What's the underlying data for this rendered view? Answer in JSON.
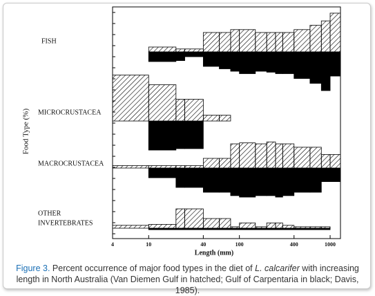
{
  "chart_data": {
    "type": "kite",
    "xlabel": "Length (mm)",
    "ylabel": "Food Type (%)",
    "log_x": true,
    "xlim": [
      4,
      1300
    ],
    "xticks": [
      4,
      10,
      40,
      100,
      400,
      1000
    ],
    "bins": [
      4,
      10,
      20,
      25,
      40,
      60,
      80,
      100,
      150,
      200,
      250,
      300,
      400,
      600,
      800,
      1000,
      1300
    ],
    "rows": [
      {
        "label": [
          "FISH"
        ],
        "series": [
          {
            "pattern": "hatched",
            "color": "#000000",
            "values": [
              0,
              10,
              6,
              6,
              40,
              40,
              46,
              46,
              40,
              40,
              40,
              40,
              46,
              55,
              64,
              80
            ]
          },
          {
            "pattern": "solid",
            "color": "#000000",
            "values": [
              0,
              20,
              18,
              10,
              30,
              35,
              40,
              45,
              40,
              42,
              45,
              45,
              55,
              65,
              80,
              50
            ]
          }
        ]
      },
      {
        "label": [
          "MICROCRUSTACEA"
        ],
        "series": [
          {
            "pattern": "hatched",
            "color": "#000000",
            "values": [
              95,
              75,
              45,
              45,
              12,
              12,
              0,
              0,
              0,
              0,
              0,
              0,
              0,
              0,
              0,
              0
            ]
          },
          {
            "pattern": "solid",
            "color": "#000000",
            "values": [
              0,
              60,
              57,
              57,
              0,
              0,
              0,
              0,
              0,
              0,
              0,
              0,
              0,
              0,
              0,
              0
            ]
          }
        ]
      },
      {
        "label": [
          "MACROCRUSTACEA"
        ],
        "series": [
          {
            "pattern": "hatched",
            "color": "#000000",
            "values": [
              5,
              5,
              5,
              5,
              20,
              20,
              50,
              52,
              50,
              54,
              50,
              50,
              43,
              43,
              28,
              28
            ]
          },
          {
            "pattern": "solid",
            "color": "#000000",
            "values": [
              0,
              20,
              40,
              40,
              50,
              50,
              57,
              60,
              57,
              57,
              60,
              57,
              50,
              50,
              28,
              28
            ]
          }
        ]
      },
      {
        "label": [
          "OTHER",
          "INVERTEBRATES"
        ],
        "series": [
          {
            "pattern": "hatched",
            "color": "#000000",
            "values": [
              6,
              8,
              40,
              40,
              20,
              20,
              3,
              11,
              3,
              11,
              11,
              6,
              3,
              3,
              3,
              0
            ]
          },
          {
            "pattern": "solid",
            "color": "#000000",
            "values": [
              0,
              3,
              3,
              3,
              3,
              3,
              3,
              3,
              3,
              3,
              3,
              3,
              3,
              3,
              3,
              0
            ]
          }
        ]
      }
    ]
  },
  "caption": {
    "label": "Figure 3.",
    "before": " Percent occurrence of major food types in the diet of ",
    "italic": "L. calcarifer",
    "after": " with increasing length in North Australia (Van Diemen Gulf in hatched; Gulf of Carpentaria in black; Davis, 1985)."
  }
}
